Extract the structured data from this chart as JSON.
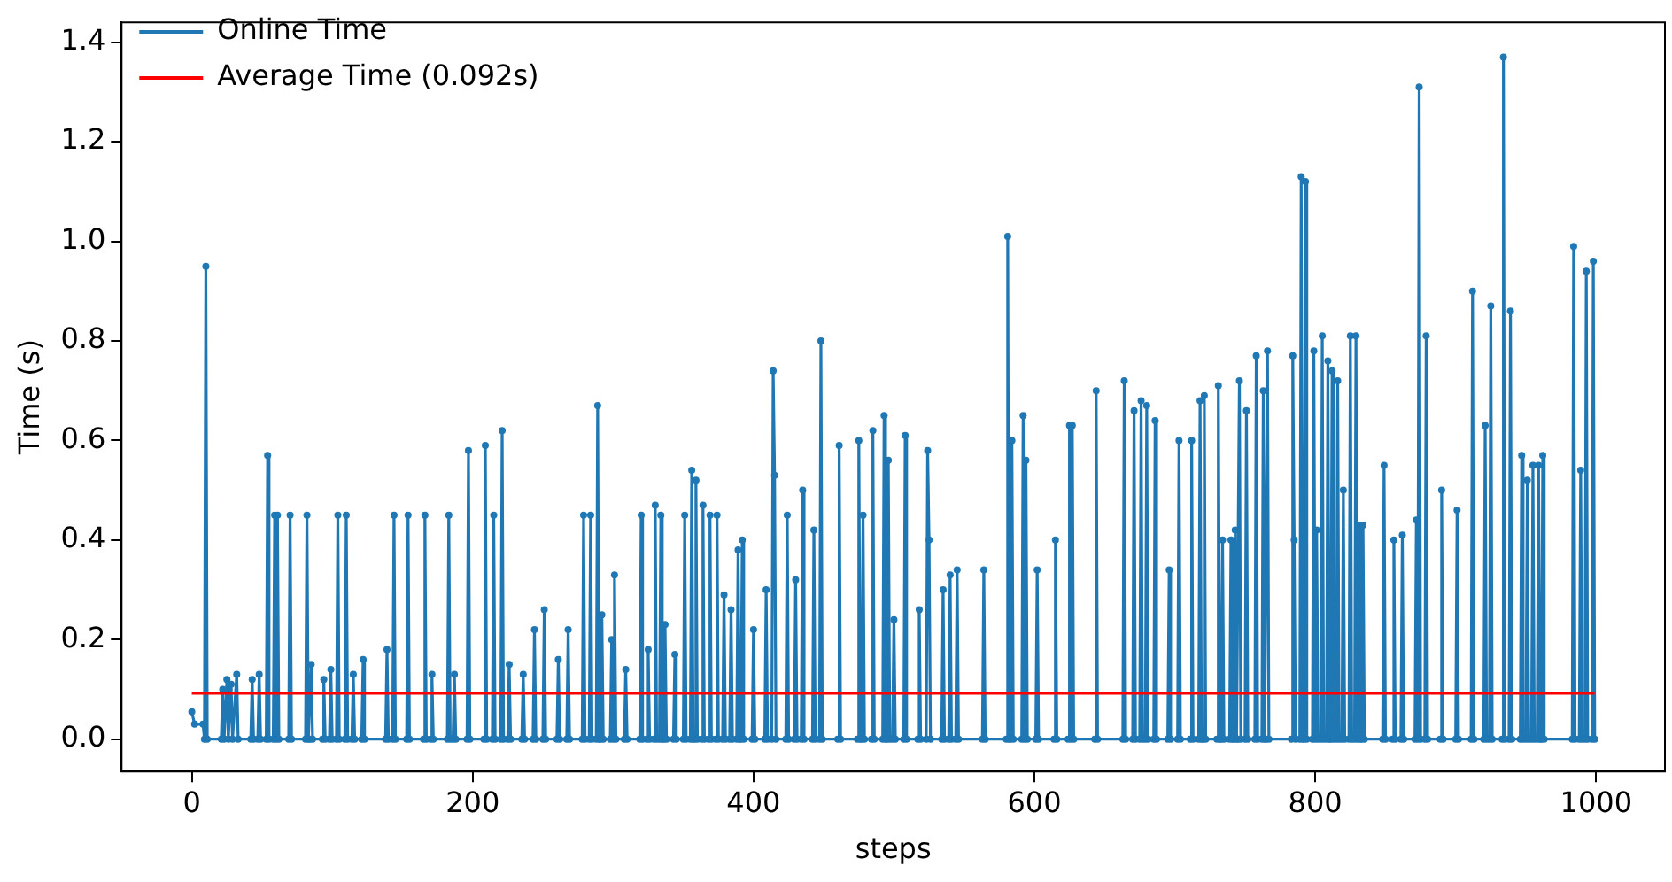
{
  "chart_data": {
    "type": "line",
    "xlabel": "steps",
    "ylabel": "Time (s)",
    "xlim": [
      -50,
      1049
    ],
    "ylim": [
      -0.065,
      1.44
    ],
    "xticks": [
      0,
      200,
      400,
      600,
      800,
      1000
    ],
    "yticks": [
      {
        "value": 0,
        "label": "0.0"
      },
      0.2,
      0.4,
      0.6,
      0.8,
      {
        "value": 1,
        "label": "1.0"
      },
      1.2,
      1.4
    ],
    "grid": false,
    "legend": "top left",
    "marker": "circle",
    "line_style": "solid",
    "series": [
      {
        "name": "Online Time",
        "color": "#1f77b4",
        "x": [
          0,
          2,
          8,
          9,
          10,
          11,
          21,
          22,
          23,
          25,
          26,
          28,
          29,
          32,
          33,
          42,
          43,
          44,
          47,
          48,
          49,
          53,
          54,
          55,
          58,
          59,
          60,
          61,
          62,
          69,
          70,
          71,
          81,
          82,
          83,
          84,
          85,
          86,
          93,
          94,
          95,
          98,
          99,
          100,
          103,
          104,
          105,
          109,
          110,
          111,
          114,
          115,
          116,
          121,
          122,
          123,
          138,
          139,
          140,
          143,
          144,
          145,
          153,
          154,
          155,
          165,
          166,
          167,
          170,
          171,
          172,
          182,
          183,
          184,
          186,
          187,
          188,
          196,
          197,
          198,
          208,
          209,
          210,
          214,
          215,
          216,
          220,
          221,
          222,
          225,
          226,
          227,
          235,
          236,
          237,
          243,
          244,
          245,
          250,
          251,
          252,
          260,
          261,
          262,
          267,
          268,
          269,
          278,
          279,
          280,
          283,
          284,
          285,
          288,
          289,
          290,
          291,
          292,
          293,
          298,
          299,
          300,
          301,
          302,
          308,
          309,
          310,
          319,
          320,
          321,
          324,
          325,
          326,
          329,
          330,
          331,
          333,
          334,
          335,
          336,
          337,
          338,
          343,
          344,
          345,
          350,
          351,
          352,
          355,
          356,
          357,
          358,
          359,
          360,
          363,
          364,
          365,
          368,
          369,
          370,
          373,
          374,
          375,
          378,
          379,
          380,
          383,
          384,
          385,
          388,
          389,
          390,
          391,
          392,
          393,
          399,
          400,
          401,
          408,
          409,
          410,
          413,
          414,
          415,
          416,
          423,
          424,
          425,
          429,
          430,
          431,
          434,
          435,
          436,
          442,
          443,
          444,
          447,
          448,
          449,
          460,
          461,
          462,
          474,
          475,
          476,
          477,
          478,
          479,
          484,
          485,
          486,
          492,
          493,
          494,
          495,
          496,
          497,
          499,
          500,
          501,
          507,
          508,
          509,
          517,
          518,
          519,
          523,
          524,
          525,
          526,
          534,
          535,
          536,
          539,
          540,
          541,
          544,
          545,
          546,
          563,
          564,
          565,
          580,
          581,
          582,
          583,
          584,
          585,
          591,
          592,
          593,
          594,
          595,
          601,
          602,
          603,
          614,
          615,
          616,
          624,
          625,
          626,
          627,
          628,
          643,
          644,
          645,
          663,
          664,
          665,
          670,
          671,
          672,
          675,
          676,
          677,
          679,
          680,
          681,
          685,
          686,
          687,
          695,
          696,
          697,
          702,
          703,
          704,
          711,
          712,
          713,
          717,
          718,
          719,
          720,
          721,
          722,
          730,
          731,
          732,
          733,
          734,
          735,
          739,
          740,
          741,
          742,
          743,
          744,
          745,
          746,
          747,
          750,
          751,
          752,
          757,
          758,
          759,
          762,
          763,
          764,
          765,
          766,
          767,
          783,
          784,
          785,
          786,
          789,
          790,
          791,
          792,
          793,
          794,
          798,
          799,
          800,
          801,
          802,
          804,
          805,
          806,
          808,
          809,
          810,
          811,
          812,
          813,
          815,
          816,
          817,
          819,
          820,
          821,
          824,
          825,
          826,
          828,
          829,
          830,
          831,
          832,
          833,
          834,
          835,
          848,
          849,
          850,
          855,
          856,
          857,
          861,
          862,
          863,
          871,
          872,
          873,
          874,
          875,
          878,
          879,
          880,
          889,
          890,
          891,
          900,
          901,
          902,
          911,
          912,
          913,
          920,
          921,
          922,
          924,
          925,
          926,
          933,
          934,
          935,
          938,
          939,
          940,
          946,
          947,
          948,
          950,
          951,
          952,
          954,
          955,
          956,
          958,
          959,
          960,
          961,
          962,
          963,
          983,
          984,
          985,
          988,
          989,
          990,
          992,
          993,
          994,
          997,
          998,
          999
        ],
        "values": [
          0.055,
          0.03,
          0.03,
          0,
          0.95,
          0,
          0,
          0.1,
          0,
          0.12,
          0,
          0.11,
          0,
          0.13,
          0,
          0,
          0.12,
          0,
          0,
          0.13,
          0,
          0,
          0.57,
          0,
          0,
          0.45,
          0,
          0.45,
          0,
          0,
          0.45,
          0,
          0,
          0.45,
          0,
          0,
          0.15,
          0,
          0,
          0.12,
          0,
          0,
          0.14,
          0,
          0,
          0.45,
          0,
          0,
          0.45,
          0,
          0,
          0.13,
          0,
          0,
          0.16,
          0,
          0,
          0.18,
          0,
          0,
          0.45,
          0,
          0,
          0.45,
          0,
          0,
          0.45,
          0,
          0,
          0.13,
          0,
          0,
          0.45,
          0,
          0,
          0.13,
          0,
          0,
          0.58,
          0,
          0,
          0.59,
          0,
          0,
          0.45,
          0,
          0,
          0.62,
          0,
          0,
          0.15,
          0,
          0,
          0.13,
          0,
          0,
          0.22,
          0,
          0,
          0.26,
          0,
          0,
          0.16,
          0,
          0,
          0.22,
          0,
          0,
          0.45,
          0,
          0,
          0.45,
          0,
          0,
          0.67,
          0,
          0,
          0.25,
          0,
          0,
          0.2,
          0,
          0.33,
          0,
          0,
          0.14,
          0,
          0,
          0.45,
          0,
          0,
          0.18,
          0,
          0,
          0.47,
          0,
          0,
          0.45,
          0,
          0,
          0.23,
          0,
          0,
          0.17,
          0,
          0,
          0.45,
          0,
          0,
          0.54,
          0,
          0,
          0.52,
          0,
          0,
          0.47,
          0,
          0,
          0.45,
          0,
          0,
          0.45,
          0,
          0,
          0.29,
          0,
          0,
          0.26,
          0,
          0,
          0.38,
          0,
          0,
          0.4,
          0,
          0,
          0.22,
          0,
          0,
          0.3,
          0,
          0,
          0.74,
          0.53,
          0,
          0,
          0.45,
          0,
          0,
          0.32,
          0,
          0,
          0.5,
          0,
          0,
          0.42,
          0,
          0,
          0.8,
          0,
          0,
          0.59,
          0,
          0,
          0.6,
          0,
          0,
          0.45,
          0,
          0,
          0.62,
          0,
          0,
          0.65,
          0,
          0,
          0.56,
          0,
          0,
          0.24,
          0,
          0,
          0.61,
          0,
          0,
          0.26,
          0,
          0,
          0.58,
          0.4,
          0,
          0,
          0.3,
          0,
          0,
          0.33,
          0,
          0,
          0.34,
          0,
          0,
          0.34,
          0,
          0,
          1.01,
          0,
          0,
          0.6,
          0,
          0,
          0.65,
          0,
          0.56,
          0,
          0,
          0.34,
          0,
          0,
          0.4,
          0,
          0,
          0.63,
          0,
          0.63,
          0,
          0,
          0.7,
          0,
          0,
          0.72,
          0,
          0,
          0.66,
          0,
          0,
          0.68,
          0,
          0,
          0.67,
          0,
          0,
          0.64,
          0,
          0,
          0.34,
          0,
          0,
          0.6,
          0,
          0,
          0.6,
          0,
          0,
          0.68,
          0,
          0,
          0.69,
          0,
          0,
          0.71,
          0,
          0,
          0.4,
          0,
          0,
          0.4,
          0,
          0,
          0.42,
          0,
          0,
          0.72,
          0,
          0,
          0.66,
          0,
          0,
          0.77,
          0,
          0,
          0.7,
          0,
          0,
          0.78,
          0,
          0,
          0.77,
          0.4,
          0,
          0,
          1.13,
          0,
          0,
          1.12,
          0,
          0,
          0.78,
          0,
          0.42,
          0,
          0,
          0.81,
          0,
          0,
          0.76,
          0,
          0,
          0.74,
          0,
          0,
          0.72,
          0,
          0,
          0.5,
          0,
          0,
          0.81,
          0,
          0,
          0.81,
          0,
          0.43,
          0,
          0,
          0.43,
          0,
          0,
          0.55,
          0,
          0,
          0.4,
          0,
          0,
          0.41,
          0,
          0,
          0.44,
          0,
          1.31,
          0,
          0,
          0.81,
          0,
          0,
          0.5,
          0,
          0,
          0.46,
          0,
          0,
          0.9,
          0,
          0,
          0.63,
          0,
          0,
          0.87,
          0,
          0,
          1.37,
          0,
          0,
          0.86,
          0,
          0,
          0.57,
          0,
          0,
          0.52,
          0,
          0,
          0.55,
          0,
          0,
          0.55,
          0,
          0,
          0.57,
          0,
          0,
          0.99,
          0,
          0,
          0.54,
          0,
          0,
          0.94,
          0,
          0,
          0.96,
          0
        ]
      }
    ],
    "ref_lines": [
      {
        "axis": "y",
        "value": 0.092,
        "label": "Average Time (0.092s)",
        "color": "#ff0000",
        "line_style": "solid"
      }
    ]
  }
}
